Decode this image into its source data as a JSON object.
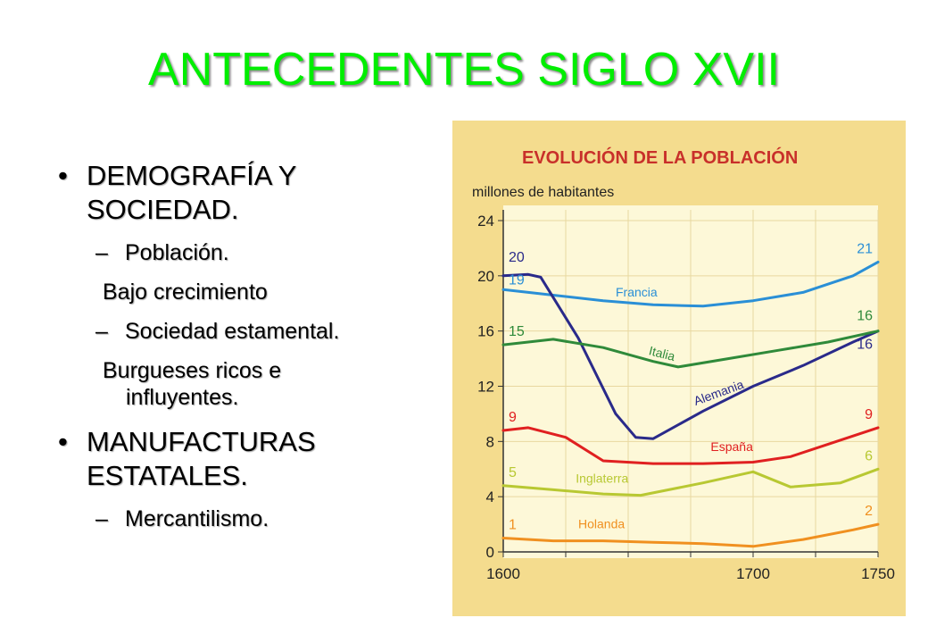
{
  "slide": {
    "title": "ANTECEDENTES SIGLO XVII",
    "bullet1": "DEMOGRAFÍA Y SOCIEDAD.",
    "sub1": "Población.",
    "plain1": "Bajo crecimiento",
    "sub2": "Sociedad estamental.",
    "plain2_line1": "Burgueses ricos e",
    "plain2_line2": "influyentes.",
    "bullet2": "MANUFACTURAS ESTATALES.",
    "sub3": "Mercantilismo.",
    "bullet_glyph": "•",
    "dash_glyph": "–"
  },
  "chart_data": {
    "type": "line",
    "title": "EVOLUCIÓN DE LA POBLACIÓN",
    "ylabel": "millones de habitantes",
    "xlabel": "",
    "xlim": [
      1600,
      1750
    ],
    "ylim": [
      0,
      24
    ],
    "xticks": [
      "1600",
      "1700",
      "1750"
    ],
    "yticks": [
      "0",
      "4",
      "8",
      "12",
      "16",
      "20",
      "24"
    ],
    "grid": true,
    "series": [
      {
        "name": "Francia",
        "color": "#2a8fd6",
        "points": [
          [
            1600,
            19
          ],
          [
            1620,
            18.6
          ],
          [
            1640,
            18.2
          ],
          [
            1660,
            17.9
          ],
          [
            1680,
            17.8
          ],
          [
            1700,
            18.2
          ],
          [
            1720,
            18.8
          ],
          [
            1740,
            20
          ],
          [
            1750,
            21
          ]
        ],
        "start_label": "19",
        "end_label": "21"
      },
      {
        "name": "Alemania",
        "color": "#2a2a8a",
        "points": [
          [
            1600,
            20
          ],
          [
            1610,
            20.1
          ],
          [
            1615,
            19.9
          ],
          [
            1630,
            15.5
          ],
          [
            1645,
            10
          ],
          [
            1653,
            8.3
          ],
          [
            1660,
            8.2
          ],
          [
            1680,
            10.2
          ],
          [
            1700,
            12
          ],
          [
            1720,
            13.5
          ],
          [
            1740,
            15.2
          ],
          [
            1750,
            16
          ]
        ],
        "start_label": "20",
        "end_label": "16"
      },
      {
        "name": "Italia",
        "color": "#2f8a3a",
        "points": [
          [
            1600,
            15
          ],
          [
            1620,
            15.4
          ],
          [
            1640,
            14.8
          ],
          [
            1660,
            13.8
          ],
          [
            1670,
            13.4
          ],
          [
            1690,
            14
          ],
          [
            1710,
            14.6
          ],
          [
            1730,
            15.2
          ],
          [
            1750,
            16
          ]
        ],
        "start_label": "15",
        "end_label": "16"
      },
      {
        "name": "España",
        "color": "#e02020",
        "points": [
          [
            1600,
            8.8
          ],
          [
            1610,
            9
          ],
          [
            1625,
            8.3
          ],
          [
            1640,
            6.6
          ],
          [
            1660,
            6.4
          ],
          [
            1680,
            6.4
          ],
          [
            1700,
            6.5
          ],
          [
            1715,
            6.9
          ],
          [
            1730,
            7.8
          ],
          [
            1750,
            9
          ]
        ],
        "start_label": "9",
        "end_label": "9"
      },
      {
        "name": "Inglaterra",
        "color": "#b8c832",
        "points": [
          [
            1600,
            4.8
          ],
          [
            1620,
            4.5
          ],
          [
            1640,
            4.2
          ],
          [
            1655,
            4.1
          ],
          [
            1680,
            5
          ],
          [
            1700,
            5.8
          ],
          [
            1715,
            4.7
          ],
          [
            1735,
            5
          ],
          [
            1750,
            6
          ]
        ],
        "start_label": "5",
        "end_label": "6"
      },
      {
        "name": "Holanda",
        "color": "#f09020",
        "points": [
          [
            1600,
            1
          ],
          [
            1620,
            0.8
          ],
          [
            1640,
            0.8
          ],
          [
            1660,
            0.7
          ],
          [
            1680,
            0.6
          ],
          [
            1700,
            0.4
          ],
          [
            1720,
            0.9
          ],
          [
            1740,
            1.6
          ],
          [
            1750,
            2
          ]
        ],
        "start_label": "1",
        "end_label": "2"
      }
    ]
  }
}
